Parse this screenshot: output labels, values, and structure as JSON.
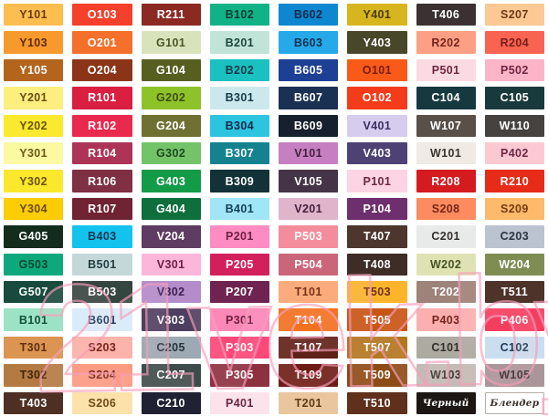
{
  "watermark": {
    "text": "21vek.by",
    "color": "#f79eba"
  },
  "special_labels": {
    "black": "Черный",
    "blender": "Блендер"
  },
  "palette": {
    "columns": 8,
    "rows": [
      [
        {
          "code": "Y101",
          "bg": "#fcbf4f",
          "fg": "#6e3a12"
        },
        {
          "code": "O103",
          "bg": "#f5402b",
          "fg": "#ffffff"
        },
        {
          "code": "R211",
          "bg": "#8b2a22",
          "fg": "#ffffff"
        },
        {
          "code": "B102",
          "bg": "#10b286",
          "fg": "#0c3a34"
        },
        {
          "code": "B602",
          "bg": "#0d87cf",
          "fg": "#12294a"
        },
        {
          "code": "Y401",
          "bg": "#d6b51e",
          "fg": "#4c3a10"
        },
        {
          "code": "T406",
          "bg": "#3b3133",
          "fg": "#ffffff"
        },
        {
          "code": "S207",
          "bg": "#fcc893",
          "fg": "#6e3a16"
        }
      ],
      [
        {
          "code": "Y103",
          "bg": "#f8992e",
          "fg": "#5e2c10"
        },
        {
          "code": "O201",
          "bg": "#f4702b",
          "fg": "#ffffff"
        },
        {
          "code": "G101",
          "bg": "#d9e3bb",
          "fg": "#4b5426"
        },
        {
          "code": "B201",
          "bg": "#c0e5d8",
          "fg": "#1d453a"
        },
        {
          "code": "B603",
          "bg": "#25a9e9",
          "fg": "#12304f"
        },
        {
          "code": "Y403",
          "bg": "#49472a",
          "fg": "#ffffff"
        },
        {
          "code": "R202",
          "bg": "#fc9f85",
          "fg": "#76251c"
        },
        {
          "code": "R204",
          "bg": "#f96352",
          "fg": "#76201a"
        }
      ],
      [
        {
          "code": "Y105",
          "bg": "#b4641d",
          "fg": "#ffffff"
        },
        {
          "code": "O204",
          "bg": "#8c3418",
          "fg": "#ffffff"
        },
        {
          "code": "G104",
          "bg": "#575f20",
          "fg": "#ffffff"
        },
        {
          "code": "B202",
          "bg": "#1bc0c0",
          "fg": "#113c4a"
        },
        {
          "code": "B605",
          "bg": "#1d3f94",
          "fg": "#ffffff"
        },
        {
          "code": "O101",
          "bg": "#fa5a17",
          "fg": "#761d16"
        },
        {
          "code": "P501",
          "bg": "#fcdae3",
          "fg": "#6e2742"
        },
        {
          "code": "P502",
          "bg": "#fcb4c9",
          "fg": "#6e2742"
        }
      ],
      [
        {
          "code": "Y201",
          "bg": "#fcee7f",
          "fg": "#6b4c12"
        },
        {
          "code": "R101",
          "bg": "#da1f41",
          "fg": "#ffffff"
        },
        {
          "code": "G202",
          "bg": "#8ec229",
          "fg": "#3c4d12"
        },
        {
          "code": "B301",
          "bg": "#cbe9ec",
          "fg": "#163a47"
        },
        {
          "code": "B607",
          "bg": "#1b3153",
          "fg": "#ffffff"
        },
        {
          "code": "O102",
          "bg": "#f53c1a",
          "fg": "#ffffff"
        },
        {
          "code": "C104",
          "bg": "#16393f",
          "fg": "#ffffff"
        },
        {
          "code": "C105",
          "bg": "#193a3c",
          "fg": "#ffffff"
        }
      ],
      [
        {
          "code": "Y202",
          "bg": "#fbe92f",
          "fg": "#6b5210"
        },
        {
          "code": "R102",
          "bg": "#e9294e",
          "fg": "#ffffff"
        },
        {
          "code": "G204",
          "bg": "#6f7133",
          "fg": "#ffffff"
        },
        {
          "code": "B304",
          "bg": "#2cc4de",
          "fg": "#142b4c"
        },
        {
          "code": "B609",
          "bg": "#16202e",
          "fg": "#ffffff"
        },
        {
          "code": "V401",
          "bg": "#d5ccee",
          "fg": "#3a3060"
        },
        {
          "code": "W107",
          "bg": "#585049",
          "fg": "#ffffff"
        },
        {
          "code": "W110",
          "bg": "#454240",
          "fg": "#ffffff"
        }
      ],
      [
        {
          "code": "Y301",
          "bg": "#fbf9a2",
          "fg": "#6b5a18"
        },
        {
          "code": "R104",
          "bg": "#ad3456",
          "fg": "#ffffff"
        },
        {
          "code": "G302",
          "bg": "#74c369",
          "fg": "#1e4a1c"
        },
        {
          "code": "B307",
          "bg": "#15828f",
          "fg": "#ffffff"
        },
        {
          "code": "V101",
          "bg": "#c680c1",
          "fg": "#44203f"
        },
        {
          "code": "V403",
          "bg": "#4e4274",
          "fg": "#ffffff"
        },
        {
          "code": "W101",
          "bg": "#efeae4",
          "fg": "#3c342e"
        },
        {
          "code": "P402",
          "bg": "#fcc9d3",
          "fg": "#6e2742"
        }
      ],
      [
        {
          "code": "Y302",
          "bg": "#fbe72c",
          "fg": "#6b5210"
        },
        {
          "code": "R106",
          "bg": "#7f3042",
          "fg": "#ffffff"
        },
        {
          "code": "G403",
          "bg": "#149b48",
          "fg": "#ffffff"
        },
        {
          "code": "B309",
          "bg": "#123238",
          "fg": "#ffffff"
        },
        {
          "code": "V105",
          "bg": "#453447",
          "fg": "#ffffff"
        },
        {
          "code": "P101",
          "bg": "#fcd4e4",
          "fg": "#6e2742"
        },
        {
          "code": "R208",
          "bg": "#d41b1f",
          "fg": "#ffffff"
        },
        {
          "code": "R210",
          "bg": "#e62b18",
          "fg": "#ffffff"
        }
      ],
      [
        {
          "code": "Y304",
          "bg": "#fccd05",
          "fg": "#6b4a10"
        },
        {
          "code": "R107",
          "bg": "#702332",
          "fg": "#ffffff"
        },
        {
          "code": "G404",
          "bg": "#0e6f3c",
          "fg": "#ffffff"
        },
        {
          "code": "B401",
          "bg": "#a0e6f6",
          "fg": "#14405a"
        },
        {
          "code": "V201",
          "bg": "#e0b4ca",
          "fg": "#44203f"
        },
        {
          "code": "P104",
          "bg": "#6e2f6f",
          "fg": "#ffffff"
        },
        {
          "code": "S208",
          "bg": "#fc8c5f",
          "fg": "#76251a"
        },
        {
          "code": "S209",
          "bg": "#fcba6a",
          "fg": "#763c14"
        }
      ],
      [
        {
          "code": "G405",
          "bg": "#132c1e",
          "fg": "#ffffff"
        },
        {
          "code": "B403",
          "bg": "#13c3ed",
          "fg": "#10364f"
        },
        {
          "code": "V204",
          "bg": "#5f3c61",
          "fg": "#ffffff"
        },
        {
          "code": "P201",
          "bg": "#fc8cc1",
          "fg": "#6e1f42"
        },
        {
          "code": "P503",
          "bg": "#f38d9c",
          "fg": "#ffffff"
        },
        {
          "code": "T407",
          "bg": "#4d362d",
          "fg": "#ffffff"
        },
        {
          "code": "C201",
          "bg": "#e7eae9",
          "fg": "#33302e"
        },
        {
          "code": "C203",
          "bg": "#bac3cf",
          "fg": "#2c3440"
        }
      ],
      [
        {
          "code": "G503",
          "bg": "#0da97c",
          "fg": "#0a4732"
        },
        {
          "code": "B501",
          "bg": "#c4d8da",
          "fg": "#233c40"
        },
        {
          "code": "V301",
          "bg": "#fcb6d9",
          "fg": "#6e1f42"
        },
        {
          "code": "P205",
          "bg": "#d1205c",
          "fg": "#ffffff"
        },
        {
          "code": "P504",
          "bg": "#ca657a",
          "fg": "#ffffff"
        },
        {
          "code": "T408",
          "bg": "#3e2c26",
          "fg": "#ffffff"
        },
        {
          "code": "W202",
          "bg": "#dfe3b3",
          "fg": "#4b5228"
        },
        {
          "code": "W204",
          "bg": "#7f8d53",
          "fg": "#ffffff"
        }
      ],
      [
        {
          "code": "G507",
          "bg": "#184a3e",
          "fg": "#ffffff"
        },
        {
          "code": "B503",
          "bg": "#354540",
          "fg": "#ffffff"
        },
        {
          "code": "V302",
          "bg": "#b48cca",
          "fg": "#3c2050"
        },
        {
          "code": "P207",
          "bg": "#6f2351",
          "fg": "#ffffff"
        },
        {
          "code": "T101",
          "bg": "#fcab7c",
          "fg": "#763418"
        },
        {
          "code": "T503",
          "bg": "#fcb52a",
          "fg": "#6e3010"
        },
        {
          "code": "T202",
          "bg": "#9d8379",
          "fg": "#ffffff"
        },
        {
          "code": "T511",
          "bg": "#4d332a",
          "fg": "#ffffff"
        }
      ],
      [
        {
          "code": "B101",
          "bg": "#9be3c4",
          "fg": "#14503a"
        },
        {
          "code": "B601",
          "bg": "#daecfa",
          "fg": "#1c3a56"
        },
        {
          "code": "V303",
          "bg": "#4d3f5f",
          "fg": "#ffffff"
        },
        {
          "code": "P301",
          "bg": "#fc88b8",
          "fg": "#6e1f3c"
        },
        {
          "code": "T104",
          "bg": "#f3721f",
          "fg": "#ffffff"
        },
        {
          "code": "T505",
          "bg": "#c75514",
          "fg": "#ffffff"
        },
        {
          "code": "P403",
          "bg": "#fcafaf",
          "fg": "#76251e"
        },
        {
          "code": "P406",
          "bg": "#f53e5f",
          "fg": "#ffffff"
        }
      ],
      [
        {
          "code": "T301",
          "bg": "#db9451",
          "fg": "#5e3010"
        },
        {
          "code": "S203",
          "bg": "#fcb3ab",
          "fg": "#76251c"
        },
        {
          "code": "C205",
          "bg": "#9daab3",
          "fg": "#28323a"
        },
        {
          "code": "P303",
          "bg": "#fc4879",
          "fg": "#ffffff"
        },
        {
          "code": "T107",
          "bg": "#5f2117",
          "fg": "#ffffff"
        },
        {
          "code": "T507",
          "bg": "#b3771f",
          "fg": "#ffffff"
        },
        {
          "code": "C101",
          "bg": "#adaaa2",
          "fg": "#33302a"
        },
        {
          "code": "C102",
          "bg": "#cadeef",
          "fg": "#1c3a56"
        }
      ],
      [
        {
          "code": "T302",
          "bg": "#b37b43",
          "fg": "#422408"
        },
        {
          "code": "S204",
          "bg": "#fc9b83",
          "fg": "#76251a"
        },
        {
          "code": "C207",
          "bg": "#3d4c4a",
          "fg": "#ffffff"
        },
        {
          "code": "P305",
          "bg": "#8d3141",
          "fg": "#ffffff"
        },
        {
          "code": "T109",
          "bg": "#6e1d16",
          "fg": "#ffffff"
        },
        {
          "code": "T509",
          "bg": "#8d4c16",
          "fg": "#ffffff"
        },
        {
          "code": "W103",
          "bg": "#c2bbb6",
          "fg": "#3c3530"
        },
        {
          "code": "W105",
          "bg": "#aa969a",
          "fg": "#3a2c30"
        }
      ],
      [
        {
          "code": "T403",
          "bg": "#4d3023",
          "fg": "#ffffff"
        },
        {
          "code": "S206",
          "bg": "#fce1ab",
          "fg": "#6e4a14"
        },
        {
          "code": "C210",
          "bg": "#202233",
          "fg": "#ffffff"
        },
        {
          "code": "P401",
          "bg": "#fce3eb",
          "fg": "#6e2742"
        },
        {
          "code": "T201",
          "bg": "#eac69f",
          "fg": "#5e3a14"
        },
        {
          "code": "T510",
          "bg": "#5f301c",
          "fg": "#ffffff"
        },
        {
          "code": "Черный",
          "bg": "#1c1715",
          "fg": "#ffffff",
          "serif": true,
          "name": "swatch-black"
        },
        {
          "code": "Блендер",
          "bg": "#ffffff",
          "fg": "#3a322c",
          "serif": true,
          "border": true,
          "name": "swatch-blender"
        }
      ]
    ]
  }
}
